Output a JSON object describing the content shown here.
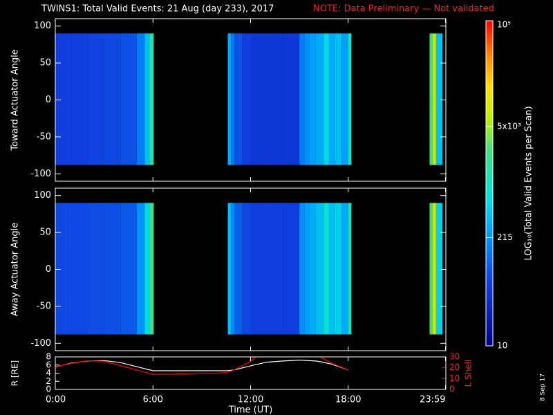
{
  "title": "TWINS1: Total Valid Events: 21 Aug (day 233), 2017",
  "note": "NOTE: Data Preliminary — Not validated",
  "date_stamp": "8 Sep 17",
  "colorbar": {
    "label": "LOG₁₀(Total Valid Events per Scan)",
    "log": true,
    "lim": [
      10,
      100000
    ],
    "ticks": [
      10,
      215,
      {
        "value": 5000,
        "label": "5x10³"
      },
      {
        "value": 100000,
        "label": "10⁵"
      }
    ]
  },
  "chart_data": [
    {
      "type": "heatmap",
      "ylabel": "Toward Actuator Angle",
      "xlim": [
        0,
        24
      ],
      "ylim": [
        -110,
        110
      ],
      "yticks": [
        -100,
        -50,
        0,
        50,
        100
      ],
      "angle_range": [
        -88,
        90
      ],
      "time_edges": [
        0,
        1,
        2,
        3,
        4,
        5,
        5.5,
        5.8,
        6.05,
        10.6,
        10.8,
        11,
        11.5,
        12,
        13,
        14,
        15,
        15.3,
        15.6,
        16,
        16.5,
        16.8,
        17.2,
        17.6,
        18,
        18.2,
        23,
        23.2,
        23.4,
        23.8
      ],
      "values": [
        60,
        60,
        65,
        70,
        80,
        150,
        400,
        1500,
        null,
        300,
        150,
        80,
        60,
        50,
        50,
        50,
        150,
        200,
        250,
        300,
        600,
        300,
        400,
        250,
        1000,
        null,
        2000,
        8000,
        400
      ]
    },
    {
      "type": "heatmap",
      "ylabel": "Away Actuator Angle",
      "xlim": [
        0,
        24
      ],
      "ylim": [
        -110,
        110
      ],
      "yticks": [
        -100,
        -50,
        0,
        50,
        100
      ],
      "angle_range": [
        -88,
        90
      ],
      "time_edges": [
        0,
        1,
        2,
        3,
        4,
        5,
        5.5,
        5.8,
        6.05,
        10.6,
        10.8,
        11,
        11.5,
        12,
        13,
        14,
        15,
        15.3,
        15.6,
        16,
        16.5,
        16.8,
        17.2,
        17.6,
        18,
        18.2,
        23,
        23.2,
        23.4,
        23.8
      ],
      "values": [
        70,
        70,
        75,
        80,
        90,
        200,
        600,
        2500,
        null,
        400,
        200,
        100,
        70,
        60,
        60,
        60,
        200,
        250,
        300,
        400,
        800,
        400,
        500,
        300,
        1200,
        null,
        2500,
        9000,
        500
      ]
    },
    {
      "type": "line",
      "xlabel": "Time (UT)",
      "xlim": [
        0,
        24
      ],
      "xticks": [
        {
          "value": 0,
          "label": "0:00"
        },
        {
          "value": 6,
          "label": "6:00"
        },
        {
          "value": 12,
          "label": "12:00"
        },
        {
          "value": 18,
          "label": "18:00"
        },
        {
          "value": 23.98,
          "label": "23:59"
        }
      ],
      "ylim": [
        0,
        8
      ],
      "yticks": [
        0,
        2,
        4,
        6,
        8
      ],
      "y2lim": [
        0,
        30
      ],
      "y2ticks": [
        0,
        10,
        20,
        30
      ],
      "x": [
        0,
        1,
        2,
        3,
        4,
        5,
        6,
        7,
        8,
        9,
        10,
        10.5,
        11,
        12,
        12.3,
        13,
        14,
        15,
        16,
        16.3,
        17,
        18
      ],
      "series": [
        {
          "name": "R [RE]",
          "color": "#ffffff",
          "values": [
            5.5,
            6.5,
            7,
            7.1,
            6.6,
            5.6,
            4.6,
            4.6,
            4.6,
            4.6,
            4.6,
            4.6,
            4.8,
            5.8,
            6.1,
            6.7,
            7,
            7.2,
            7,
            6.8,
            6.2,
            4.8
          ]
        },
        {
          "name": "L Shell",
          "color": "#ff0000",
          "axis": "y2",
          "values": [
            21,
            24,
            26.5,
            26,
            22,
            18,
            14,
            14,
            14.5,
            15,
            15,
            15.5,
            18,
            26,
            30,
            null,
            null,
            null,
            null,
            30,
            24,
            18
          ]
        }
      ]
    }
  ]
}
